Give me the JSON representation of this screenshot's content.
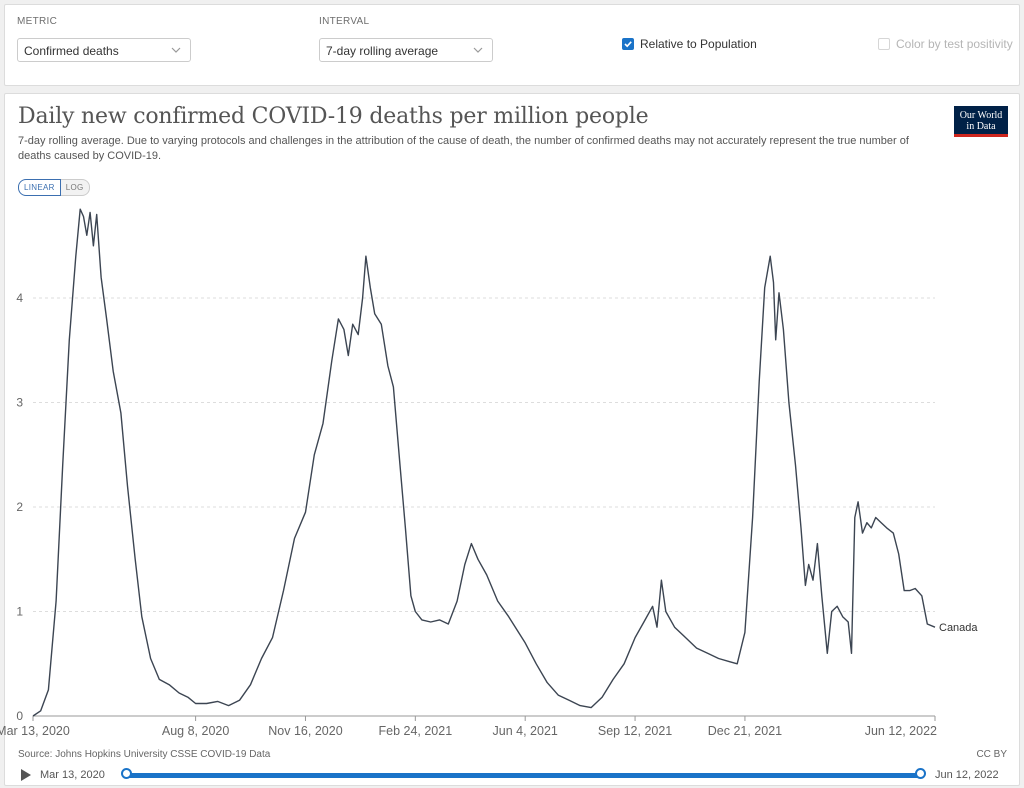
{
  "controls": {
    "metric_label": "METRIC",
    "metric_value": "Confirmed deaths",
    "interval_label": "INTERVAL",
    "interval_value": "7-day rolling average",
    "relative_label": "Relative to Population",
    "relative_checked": true,
    "color_label": "Color by test positivity",
    "color_checked": false
  },
  "header": {
    "title": "Daily new confirmed COVID-19 deaths per million people",
    "subtitle": "7-day rolling average. Due to varying protocols and challenges in the attribution of the cause of death, the number of confirmed deaths may not accurately represent the true number of deaths caused by COVID-19.",
    "logo_line1": "Our World",
    "logo_line2": "in Data"
  },
  "scale": {
    "linear": "LINEAR",
    "log": "LOG"
  },
  "footer": {
    "source": "Source: Johns Hopkins University CSSE COVID-19 Data",
    "license": "CC BY"
  },
  "timeline": {
    "start": "Mar 13, 2020",
    "end": "Jun 12, 2022"
  },
  "colors": {
    "line": "#3c4552",
    "accent": "#1a73c8",
    "logo_bg": "#002147",
    "logo_accent": "#ce261e"
  },
  "chart_data": {
    "type": "line",
    "title": "Daily new confirmed COVID-19 deaths per million people",
    "x_start": "2020-03-13",
    "x_end": "2022-06-12",
    "ylim": [
      0,
      4.9
    ],
    "yticks": [
      0,
      1,
      2,
      3,
      4
    ],
    "xtick_labels": [
      "Mar 13, 2020",
      "Aug 8, 2020",
      "Nov 16, 2020",
      "Feb 24, 2021",
      "Jun 4, 2021",
      "Sep 12, 2021",
      "Dec 21, 2021",
      "Jun 12, 2022"
    ],
    "xtick_dates": [
      "2020-03-13",
      "2020-08-08",
      "2020-11-16",
      "2021-02-24",
      "2021-06-04",
      "2021-09-12",
      "2021-12-21",
      "2022-06-12"
    ],
    "grid": true,
    "series": [
      {
        "name": "Canada",
        "points": [
          [
            "2020-03-13",
            0.0
          ],
          [
            "2020-03-20",
            0.05
          ],
          [
            "2020-03-27",
            0.25
          ],
          [
            "2020-04-03",
            1.1
          ],
          [
            "2020-04-09",
            2.4
          ],
          [
            "2020-04-15",
            3.6
          ],
          [
            "2020-04-21",
            4.4
          ],
          [
            "2020-04-25",
            4.85
          ],
          [
            "2020-04-28",
            4.78
          ],
          [
            "2020-05-01",
            4.6
          ],
          [
            "2020-05-04",
            4.82
          ],
          [
            "2020-05-07",
            4.5
          ],
          [
            "2020-05-10",
            4.8
          ],
          [
            "2020-05-14",
            4.2
          ],
          [
            "2020-05-19",
            3.8
          ],
          [
            "2020-05-25",
            3.3
          ],
          [
            "2020-06-01",
            2.9
          ],
          [
            "2020-06-07",
            2.2
          ],
          [
            "2020-06-14",
            1.5
          ],
          [
            "2020-06-20",
            0.95
          ],
          [
            "2020-06-28",
            0.55
          ],
          [
            "2020-07-06",
            0.35
          ],
          [
            "2020-07-15",
            0.3
          ],
          [
            "2020-07-24",
            0.22
          ],
          [
            "2020-08-01",
            0.18
          ],
          [
            "2020-08-08",
            0.12
          ],
          [
            "2020-08-18",
            0.12
          ],
          [
            "2020-08-28",
            0.14
          ],
          [
            "2020-09-07",
            0.1
          ],
          [
            "2020-09-17",
            0.15
          ],
          [
            "2020-09-27",
            0.3
          ],
          [
            "2020-10-07",
            0.55
          ],
          [
            "2020-10-17",
            0.75
          ],
          [
            "2020-10-27",
            1.2
          ],
          [
            "2020-11-06",
            1.7
          ],
          [
            "2020-11-16",
            1.95
          ],
          [
            "2020-11-24",
            2.5
          ],
          [
            "2020-12-02",
            2.8
          ],
          [
            "2020-12-10",
            3.4
          ],
          [
            "2020-12-16",
            3.8
          ],
          [
            "2020-12-21",
            3.7
          ],
          [
            "2020-12-25",
            3.45
          ],
          [
            "2020-12-29",
            3.75
          ],
          [
            "2021-01-03",
            3.65
          ],
          [
            "2021-01-07",
            4.0
          ],
          [
            "2021-01-10",
            4.4
          ],
          [
            "2021-01-14",
            4.1
          ],
          [
            "2021-01-18",
            3.85
          ],
          [
            "2021-01-24",
            3.75
          ],
          [
            "2021-01-30",
            3.35
          ],
          [
            "2021-02-04",
            3.15
          ],
          [
            "2021-02-10",
            2.4
          ],
          [
            "2021-02-15",
            1.8
          ],
          [
            "2021-02-20",
            1.15
          ],
          [
            "2021-02-24",
            1.0
          ],
          [
            "2021-03-02",
            0.92
          ],
          [
            "2021-03-10",
            0.9
          ],
          [
            "2021-03-18",
            0.92
          ],
          [
            "2021-03-26",
            0.88
          ],
          [
            "2021-04-03",
            1.1
          ],
          [
            "2021-04-10",
            1.45
          ],
          [
            "2021-04-16",
            1.65
          ],
          [
            "2021-04-22",
            1.5
          ],
          [
            "2021-04-30",
            1.35
          ],
          [
            "2021-05-10",
            1.1
          ],
          [
            "2021-05-20",
            0.95
          ],
          [
            "2021-06-04",
            0.7
          ],
          [
            "2021-06-14",
            0.5
          ],
          [
            "2021-06-24",
            0.32
          ],
          [
            "2021-07-04",
            0.2
          ],
          [
            "2021-07-14",
            0.15
          ],
          [
            "2021-07-24",
            0.1
          ],
          [
            "2021-08-03",
            0.08
          ],
          [
            "2021-08-13",
            0.18
          ],
          [
            "2021-08-23",
            0.35
          ],
          [
            "2021-09-02",
            0.5
          ],
          [
            "2021-09-12",
            0.75
          ],
          [
            "2021-09-20",
            0.9
          ],
          [
            "2021-09-28",
            1.05
          ],
          [
            "2021-10-02",
            0.85
          ],
          [
            "2021-10-06",
            1.3
          ],
          [
            "2021-10-10",
            1.0
          ],
          [
            "2021-10-18",
            0.85
          ],
          [
            "2021-10-28",
            0.75
          ],
          [
            "2021-11-07",
            0.65
          ],
          [
            "2021-11-17",
            0.6
          ],
          [
            "2021-11-27",
            0.55
          ],
          [
            "2021-12-07",
            0.52
          ],
          [
            "2021-12-14",
            0.5
          ],
          [
            "2021-12-21",
            0.8
          ],
          [
            "2021-12-28",
            1.9
          ],
          [
            "2022-01-03",
            3.2
          ],
          [
            "2022-01-08",
            4.1
          ],
          [
            "2022-01-13",
            4.4
          ],
          [
            "2022-01-16",
            4.15
          ],
          [
            "2022-01-18",
            3.6
          ],
          [
            "2022-01-21",
            4.05
          ],
          [
            "2022-01-25",
            3.7
          ],
          [
            "2022-01-30",
            3.0
          ],
          [
            "2022-02-05",
            2.4
          ],
          [
            "2022-02-10",
            1.8
          ],
          [
            "2022-02-14",
            1.25
          ],
          [
            "2022-02-17",
            1.45
          ],
          [
            "2022-02-21",
            1.3
          ],
          [
            "2022-02-25",
            1.65
          ],
          [
            "2022-03-01",
            1.15
          ],
          [
            "2022-03-06",
            0.6
          ],
          [
            "2022-03-10",
            1.0
          ],
          [
            "2022-03-15",
            1.05
          ],
          [
            "2022-03-20",
            0.95
          ],
          [
            "2022-03-25",
            0.9
          ],
          [
            "2022-03-28",
            0.6
          ],
          [
            "2022-03-31",
            1.9
          ],
          [
            "2022-04-03",
            2.05
          ],
          [
            "2022-04-07",
            1.75
          ],
          [
            "2022-04-11",
            1.85
          ],
          [
            "2022-04-15",
            1.8
          ],
          [
            "2022-04-19",
            1.9
          ],
          [
            "2022-04-24",
            1.85
          ],
          [
            "2022-04-29",
            1.8
          ],
          [
            "2022-05-05",
            1.75
          ],
          [
            "2022-05-10",
            1.55
          ],
          [
            "2022-05-15",
            1.2
          ],
          [
            "2022-05-20",
            1.2
          ],
          [
            "2022-05-25",
            1.22
          ],
          [
            "2022-05-31",
            1.15
          ],
          [
            "2022-06-05",
            0.88
          ],
          [
            "2022-06-12",
            0.85
          ]
        ]
      }
    ],
    "end_label": "Canada"
  }
}
